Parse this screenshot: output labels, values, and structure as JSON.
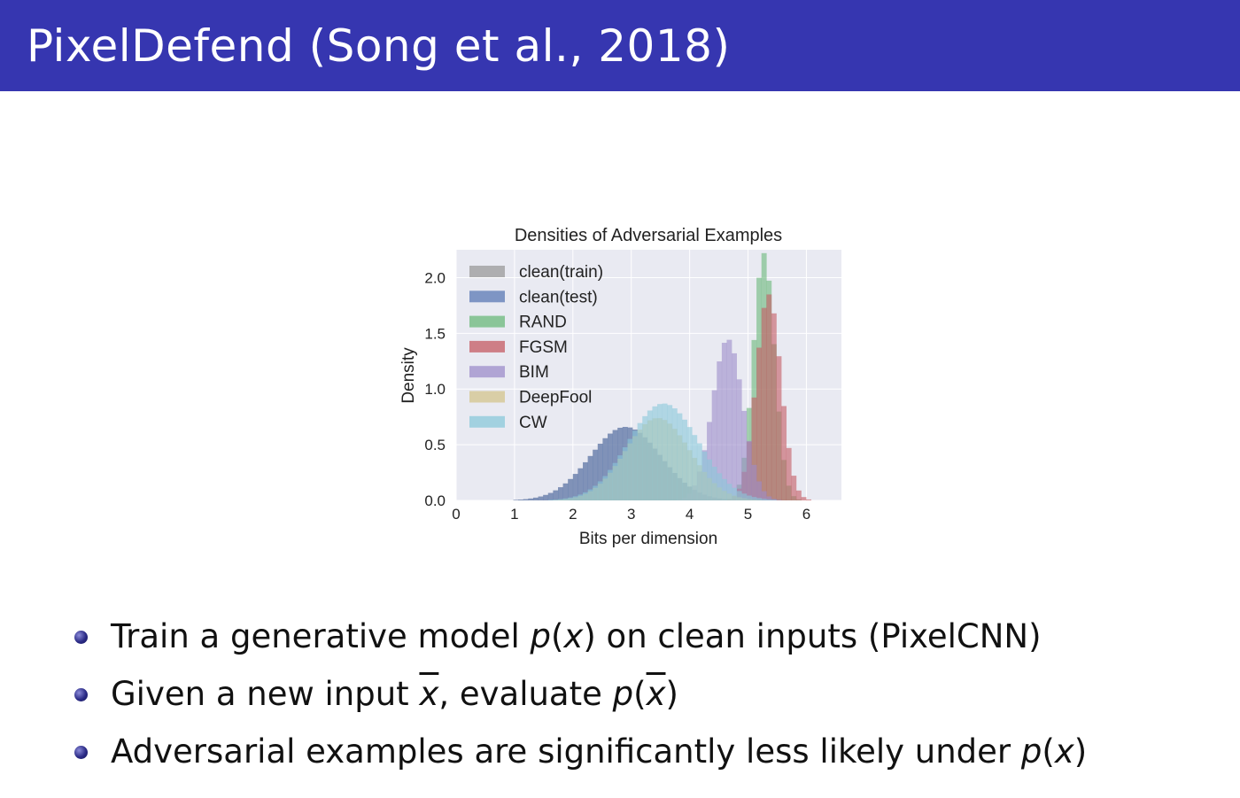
{
  "slide": {
    "title": "PixelDefend (Song et al., 2018)",
    "header_color": "#3636b0"
  },
  "chart_data": {
    "type": "histogram",
    "title": "Densities of Adversarial Examples",
    "xlabel": "Bits per dimension",
    "ylabel": "Density",
    "xlim": [
      0,
      6.6
    ],
    "ylim": [
      0,
      2.25
    ],
    "xticks": [
      "0",
      "1",
      "2",
      "3",
      "4",
      "5",
      "6"
    ],
    "yticks": [
      "0.0",
      "0.5",
      "1.0",
      "1.5",
      "2.0"
    ],
    "grid": true,
    "legend_position": "top-left",
    "series": [
      {
        "name": "clean(train)",
        "color": "#9a9a9a",
        "mean": 2.9,
        "sd": 0.6,
        "peak": 0.66
      },
      {
        "name": "clean(test)",
        "color": "#5a78b4",
        "mean": 2.9,
        "sd": 0.6,
        "peak": 0.66
      },
      {
        "name": "RAND",
        "color": "#6ab87a",
        "mean": 5.27,
        "sd": 0.18,
        "peak": 2.22
      },
      {
        "name": "FGSM",
        "color": "#c45a62",
        "mean": 5.35,
        "sd": 0.21,
        "peak": 1.85
      },
      {
        "name": "BIM",
        "color": "#9c8cca",
        "mean": 4.65,
        "sd": 0.26,
        "peak": 1.45
      },
      {
        "name": "DeepFool",
        "color": "#d3c48c",
        "mean": 3.45,
        "sd": 0.55,
        "peak": 0.74
      },
      {
        "name": "CW",
        "color": "#8ac8da",
        "mean": 3.55,
        "sd": 0.6,
        "peak": 0.87
      }
    ]
  },
  "bullets": [
    {
      "before": "Train a generative model ",
      "math1": "p",
      "paren_open": "(",
      "var1": "x",
      "paren_close": ")",
      "after": " on clean inputs (PixelCNN)"
    },
    {
      "before": "Given a new input ",
      "var_bar": "x",
      "middle": ", evaluate ",
      "math1": "p",
      "paren_open": "(",
      "var_bar2": "x",
      "paren_close": ")"
    },
    {
      "before": "Adversarial examples are significantly less likely under ",
      "math1": "p",
      "paren_open": "(",
      "var1": "x",
      "paren_close": ")"
    }
  ]
}
